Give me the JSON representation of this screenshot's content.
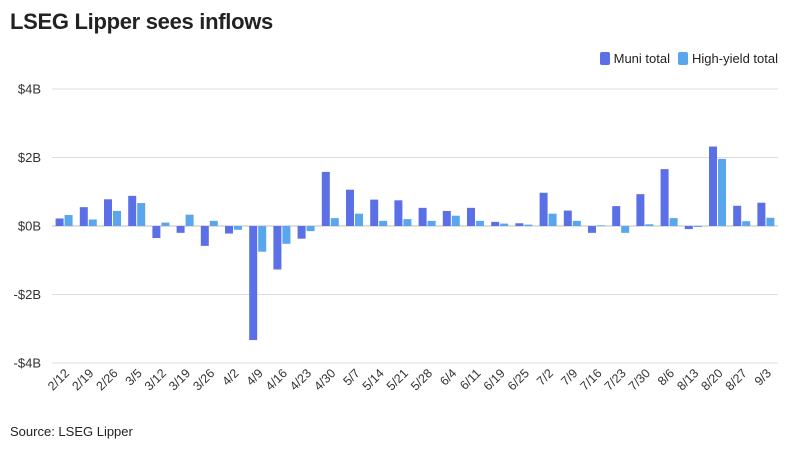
{
  "title": "LSEG Lipper sees inflows",
  "source": "Source: LSEG Lipper",
  "colors": {
    "muni": "#5b6fe6",
    "high_yield": "#5aa6ec",
    "grid": "#dddddd",
    "zero": "#bdbdbd"
  },
  "chart_data": {
    "type": "bar",
    "title": "LSEG Lipper sees inflows",
    "xlabel": "",
    "ylabel": "",
    "ylim": [
      -4,
      4
    ],
    "y_ticks": [
      -4,
      -2,
      0,
      2,
      4
    ],
    "y_tick_labels": [
      "-$4B",
      "-$2B",
      "$0B",
      "$2B",
      "$4B"
    ],
    "y_unit": "billions of dollars",
    "grid": true,
    "legend": "top-right",
    "categories": [
      "2/12",
      "2/19",
      "2/26",
      "3/5",
      "3/12",
      "3/19",
      "3/26",
      "4/2",
      "4/9",
      "4/16",
      "4/23",
      "4/30",
      "5/7",
      "5/14",
      "5/21",
      "5/28",
      "6/4",
      "6/11",
      "6/19",
      "6/25",
      "7/2",
      "7/9",
      "7/16",
      "7/23",
      "7/30",
      "8/6",
      "8/13",
      "8/20",
      "8/27",
      "9/3"
    ],
    "series": [
      {
        "name": "Muni total",
        "values": [
          0.22,
          0.55,
          0.78,
          0.88,
          -0.35,
          -0.2,
          -0.58,
          -0.22,
          -3.33,
          -1.27,
          -0.37,
          1.58,
          1.06,
          0.77,
          0.75,
          0.53,
          0.44,
          0.53,
          0.12,
          0.08,
          0.97,
          0.45,
          -0.2,
          0.58,
          0.93,
          1.66,
          -0.09,
          2.32,
          0.59,
          0.68
        ]
      },
      {
        "name": "High-yield total",
        "values": [
          0.32,
          0.19,
          0.44,
          0.67,
          0.1,
          0.33,
          0.15,
          -0.11,
          -0.75,
          -0.52,
          -0.15,
          0.23,
          0.36,
          0.15,
          0.2,
          0.15,
          0.3,
          0.15,
          0.07,
          0.04,
          0.36,
          0.15,
          0.02,
          -0.2,
          0.05,
          0.23,
          -0.03,
          1.96,
          0.14,
          0.24
        ]
      }
    ]
  }
}
